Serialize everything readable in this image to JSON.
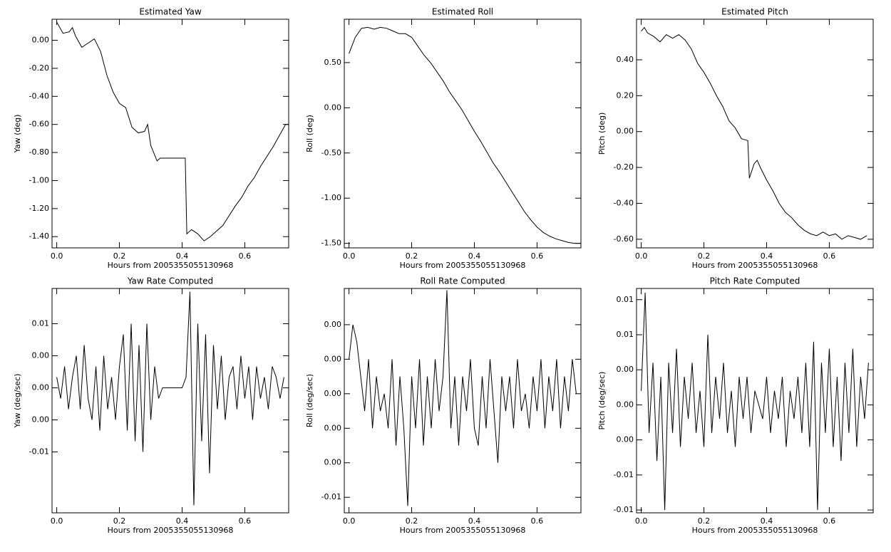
{
  "chart_data": [
    {
      "type": "line",
      "title": "Estimated Yaw",
      "x_label": "Hours from 2005355055130968",
      "y_label": "Yaw (deg)",
      "xlim": [
        -0.015,
        0.74
      ],
      "xticks": [
        {
          "value": 0,
          "label": "0.0"
        },
        0.2,
        0.4,
        0.6
      ],
      "ylim": [
        -1.48,
        0.15
      ],
      "yticks": [
        {
          "value": 0,
          "label": "0.00"
        },
        {
          "value": -0.2,
          "label": "-0.20"
        },
        {
          "value": -0.4,
          "label": "-0.40"
        },
        {
          "value": -0.6,
          "label": "-0.60"
        },
        {
          "value": -0.8,
          "label": "-0.80"
        },
        {
          "value": -1.0,
          "label": "-1.00"
        },
        {
          "value": -1.2,
          "label": "-1.20"
        },
        {
          "value": -1.4,
          "label": "-1.40"
        }
      ],
      "color": "#000000",
      "x": [
        0,
        0.02,
        0.04,
        0.05,
        0.06,
        0.08,
        0.1,
        0.12,
        0.14,
        0.16,
        0.18,
        0.2,
        0.22,
        0.24,
        0.26,
        0.28,
        0.29,
        0.3,
        0.32,
        0.33,
        0.41,
        0.415,
        0.43,
        0.45,
        0.47,
        0.49,
        0.51,
        0.53,
        0.55,
        0.57,
        0.59,
        0.61,
        0.63,
        0.65,
        0.67,
        0.69,
        0.71,
        0.73,
        0.74
      ],
      "values": [
        0.13,
        0.05,
        0.06,
        0.09,
        0.03,
        -0.05,
        -0.02,
        0.01,
        -0.08,
        -0.25,
        -0.37,
        -0.45,
        -0.48,
        -0.62,
        -0.66,
        -0.65,
        -0.6,
        -0.75,
        -0.86,
        -0.84,
        -0.84,
        -1.38,
        -1.35,
        -1.38,
        -1.43,
        -1.4,
        -1.36,
        -1.32,
        -1.25,
        -1.18,
        -1.12,
        -1.04,
        -0.98,
        -0.9,
        -0.83,
        -0.76,
        -0.68,
        -0.6,
        -0.6
      ]
    },
    {
      "type": "line",
      "title": "Estimated Roll",
      "x_label": "Hours from 2005355055130968",
      "y_label": "Roll (deg)",
      "xlim": [
        -0.015,
        0.74
      ],
      "xticks": [
        {
          "value": 0,
          "label": "0.0"
        },
        0.2,
        0.4,
        0.6
      ],
      "ylim": [
        -1.55,
        0.98
      ],
      "yticks": [
        {
          "value": 0.5,
          "label": "0.50"
        },
        {
          "value": 0,
          "label": "0.00"
        },
        {
          "value": -0.5,
          "label": "-0.50"
        },
        {
          "value": -1.0,
          "label": "-1.00"
        },
        {
          "value": -1.5,
          "label": "-1.50"
        }
      ],
      "color": "#000000",
      "x": [
        0,
        0.02,
        0.04,
        0.06,
        0.08,
        0.1,
        0.12,
        0.14,
        0.16,
        0.18,
        0.2,
        0.22,
        0.24,
        0.26,
        0.28,
        0.3,
        0.32,
        0.34,
        0.36,
        0.38,
        0.4,
        0.42,
        0.44,
        0.46,
        0.48,
        0.5,
        0.52,
        0.54,
        0.56,
        0.58,
        0.6,
        0.62,
        0.64,
        0.66,
        0.68,
        0.7,
        0.72,
        0.74
      ],
      "values": [
        0.6,
        0.78,
        0.88,
        0.89,
        0.87,
        0.89,
        0.88,
        0.85,
        0.82,
        0.82,
        0.78,
        0.68,
        0.58,
        0.5,
        0.4,
        0.3,
        0.18,
        0.08,
        -0.02,
        -0.14,
        -0.26,
        -0.37,
        -0.49,
        -0.61,
        -0.71,
        -0.82,
        -0.93,
        -1.04,
        -1.15,
        -1.24,
        -1.32,
        -1.38,
        -1.42,
        -1.45,
        -1.47,
        -1.49,
        -1.5,
        -1.5
      ]
    },
    {
      "type": "line",
      "title": "Estimated Pitch",
      "x_label": "Hours from 2005355055130968",
      "y_label": "Pitch (deg)",
      "xlim": [
        -0.015,
        0.74
      ],
      "xticks": [
        {
          "value": 0,
          "label": "0.0"
        },
        0.2,
        0.4,
        0.6
      ],
      "ylim": [
        -0.648,
        0.626
      ],
      "yticks": [
        {
          "value": 0.4,
          "label": "0.40"
        },
        {
          "value": 0.2,
          "label": "0.20"
        },
        {
          "value": 0,
          "label": "0.00"
        },
        {
          "value": -0.2,
          "label": "-0.20"
        },
        {
          "value": -0.4,
          "label": "-0.40"
        },
        {
          "value": -0.6,
          "label": "-0.60"
        }
      ],
      "color": "#000000",
      "x": [
        0,
        0.01,
        0.02,
        0.04,
        0.06,
        0.08,
        0.1,
        0.12,
        0.14,
        0.16,
        0.18,
        0.2,
        0.22,
        0.24,
        0.26,
        0.28,
        0.3,
        0.32,
        0.34,
        0.345,
        0.36,
        0.37,
        0.38,
        0.4,
        0.42,
        0.44,
        0.46,
        0.48,
        0.5,
        0.52,
        0.54,
        0.56,
        0.58,
        0.6,
        0.62,
        0.64,
        0.66,
        0.68,
        0.7,
        0.72
      ],
      "values": [
        0.56,
        0.58,
        0.55,
        0.53,
        0.5,
        0.54,
        0.52,
        0.54,
        0.51,
        0.46,
        0.38,
        0.33,
        0.27,
        0.2,
        0.14,
        0.06,
        0.02,
        -0.04,
        -0.05,
        -0.26,
        -0.18,
        -0.16,
        -0.2,
        -0.27,
        -0.33,
        -0.4,
        -0.45,
        -0.48,
        -0.52,
        -0.55,
        -0.57,
        -0.58,
        -0.56,
        -0.58,
        -0.57,
        -0.6,
        -0.58,
        -0.59,
        -0.6,
        -0.58
      ]
    },
    {
      "type": "line",
      "title": "Yaw Rate Computed",
      "x_label": "Hours from 2005355055130968",
      "y_label": "Yaw (deg/sec)",
      "xlim": [
        -0.015,
        0.74
      ],
      "xticks": [
        {
          "value": 0,
          "label": "0.0"
        },
        0.2,
        0.4,
        0.6
      ],
      "ylim": [
        -0.0117,
        0.0093
      ],
      "yticks": [
        {
          "value": 0.006,
          "label": "0.01"
        },
        {
          "value": 0.003,
          "label": "0.00"
        },
        {
          "value": 0,
          "label": "0.00"
        },
        {
          "value": -0.003,
          "label": "0.00"
        },
        {
          "value": -0.006,
          "label": "-0.01"
        }
      ],
      "color": "#000000",
      "x": [
        0,
        0.0125,
        0.025,
        0.0375,
        0.05,
        0.0625,
        0.075,
        0.0875,
        0.1,
        0.1125,
        0.125,
        0.1375,
        0.15,
        0.1625,
        0.175,
        0.1875,
        0.2,
        0.2125,
        0.225,
        0.2375,
        0.25,
        0.2625,
        0.275,
        0.2875,
        0.3,
        0.3125,
        0.325,
        0.3375,
        0.35,
        0.3625,
        0.375,
        0.3875,
        0.4,
        0.4125,
        0.425,
        0.4375,
        0.45,
        0.4625,
        0.475,
        0.4875,
        0.5,
        0.5125,
        0.525,
        0.5375,
        0.55,
        0.5625,
        0.575,
        0.5875,
        0.6,
        0.6125,
        0.625,
        0.6375,
        0.65,
        0.6625,
        0.675,
        0.6875,
        0.7,
        0.7125,
        0.725
      ],
      "values": [
        0.001,
        -0.001,
        0.002,
        -0.002,
        0.001,
        0.003,
        -0.002,
        0.004,
        -0.001,
        -0.003,
        0.002,
        -0.004,
        0.003,
        -0.002,
        0.001,
        -0.003,
        0.002,
        0.005,
        -0.004,
        0.006,
        -0.005,
        0.004,
        -0.006,
        0.006,
        -0.003,
        0.002,
        -0.001,
        0,
        0,
        0,
        0,
        0,
        0,
        0.001,
        0.009,
        -0.011,
        0.006,
        -0.005,
        0.005,
        -0.008,
        0.004,
        -0.002,
        0.003,
        -0.003,
        0.001,
        0.002,
        -0.002,
        0.003,
        -0.001,
        0.002,
        -0.003,
        0.002,
        -0.001,
        0.001,
        -0.002,
        0.002,
        0.001,
        -0.001,
        0.001
      ]
    },
    {
      "type": "line",
      "title": "Roll Rate Computed",
      "x_label": "Hours from 2005355055130968",
      "y_label": "Roll (deg/sec)",
      "xlim": [
        -0.015,
        0.74
      ],
      "xticks": [
        {
          "value": 0,
          "label": "0.0"
        },
        0.2,
        0.4,
        0.6
      ],
      "ylim": [
        -0.0069,
        0.0061
      ],
      "yticks": [
        {
          "value": 0.004,
          "label": "0.00"
        },
        {
          "value": 0.002,
          "label": "0.00"
        },
        {
          "value": 0,
          "label": "0.00"
        },
        {
          "value": -0.002,
          "label": "0.00"
        },
        {
          "value": -0.004,
          "label": "0.00"
        },
        {
          "value": -0.006,
          "label": "-0.01"
        }
      ],
      "color": "#000000",
      "x": [
        0,
        0.0125,
        0.025,
        0.0375,
        0.05,
        0.0625,
        0.075,
        0.0875,
        0.1,
        0.1125,
        0.125,
        0.1375,
        0.15,
        0.1625,
        0.175,
        0.1875,
        0.2,
        0.2125,
        0.225,
        0.2375,
        0.25,
        0.2625,
        0.275,
        0.2875,
        0.3,
        0.3125,
        0.325,
        0.3375,
        0.35,
        0.3625,
        0.375,
        0.3875,
        0.4,
        0.4125,
        0.425,
        0.4375,
        0.45,
        0.4625,
        0.475,
        0.4875,
        0.5,
        0.5125,
        0.525,
        0.5375,
        0.55,
        0.5625,
        0.575,
        0.5875,
        0.6,
        0.6125,
        0.625,
        0.6375,
        0.65,
        0.6625,
        0.675,
        0.6875,
        0.7,
        0.7125,
        0.725
      ],
      "values": [
        0.002,
        0.004,
        0.003,
        0.001,
        -0.001,
        0.002,
        -0.002,
        0.001,
        -0.001,
        0.0,
        -0.002,
        0.002,
        -0.003,
        0.001,
        -0.002,
        -0.0065,
        0.001,
        -0.002,
        0.002,
        -0.003,
        0.001,
        -0.002,
        0.002,
        -0.001,
        0.001,
        0.006,
        -0.002,
        0.001,
        -0.003,
        0.001,
        -0.001,
        0.002,
        -0.002,
        -0.003,
        0.001,
        -0.002,
        0.002,
        -0.001,
        -0.004,
        0.001,
        -0.001,
        0.001,
        -0.002,
        0.002,
        -0.001,
        0.0,
        -0.002,
        0.001,
        -0.001,
        0.002,
        -0.002,
        0.001,
        -0.001,
        0.002,
        -0.002,
        0.001,
        -0.001,
        0.002,
        0.0
      ]
    },
    {
      "type": "line",
      "title": "Pitch Rate Computed",
      "x_label": "Hours from 2005355055130968",
      "y_label": "Pitch (deg/sec)",
      "xlim": [
        -0.015,
        0.74
      ],
      "xticks": [
        {
          "value": 0,
          "label": "0.0"
        },
        0.2,
        0.4,
        0.6
      ],
      "ylim": [
        -0.0077,
        0.0083
      ],
      "yticks": [
        {
          "value": 0.0075,
          "label": "0.01"
        },
        {
          "value": 0.005,
          "label": "0.01"
        },
        {
          "value": 0.0025,
          "label": "0.00"
        },
        {
          "value": 0,
          "label": "0.00"
        },
        {
          "value": -0.0025,
          "label": "0.00"
        },
        {
          "value": -0.005,
          "label": "-0.01"
        },
        {
          "value": -0.0075,
          "label": "-0.01"
        }
      ],
      "color": "#000000",
      "x": [
        0,
        0.0125,
        0.025,
        0.0375,
        0.05,
        0.0625,
        0.075,
        0.0875,
        0.1,
        0.1125,
        0.125,
        0.1375,
        0.15,
        0.1625,
        0.175,
        0.1875,
        0.2,
        0.2125,
        0.225,
        0.2375,
        0.25,
        0.2625,
        0.275,
        0.2875,
        0.3,
        0.3125,
        0.325,
        0.3375,
        0.35,
        0.3625,
        0.375,
        0.3875,
        0.4,
        0.4125,
        0.425,
        0.4375,
        0.45,
        0.4625,
        0.475,
        0.4875,
        0.5,
        0.5125,
        0.525,
        0.5375,
        0.55,
        0.5625,
        0.575,
        0.5875,
        0.6,
        0.6125,
        0.625,
        0.6375,
        0.65,
        0.6625,
        0.675,
        0.6875,
        0.7,
        0.7125,
        0.725
      ],
      "values": [
        0.001,
        0.008,
        -0.002,
        0.003,
        -0.004,
        0.002,
        -0.0075,
        0.003,
        -0.002,
        0.004,
        -0.003,
        0.002,
        -0.001,
        0.003,
        -0.002,
        0.001,
        -0.003,
        0.005,
        -0.002,
        0.002,
        -0.001,
        0.003,
        -0.002,
        0.001,
        -0.003,
        0.002,
        -0.001,
        0.002,
        -0.002,
        0.001,
        0.0,
        -0.001,
        0.002,
        -0.002,
        0.001,
        -0.001,
        0.002,
        -0.003,
        0.001,
        -0.001,
        0.002,
        -0.002,
        0.003,
        -0.003,
        0.0045,
        -0.0075,
        0.003,
        -0.002,
        0.004,
        -0.003,
        0.002,
        -0.004,
        0.003,
        -0.002,
        0.004,
        -0.003,
        0.002,
        -0.001,
        0.003
      ]
    }
  ]
}
